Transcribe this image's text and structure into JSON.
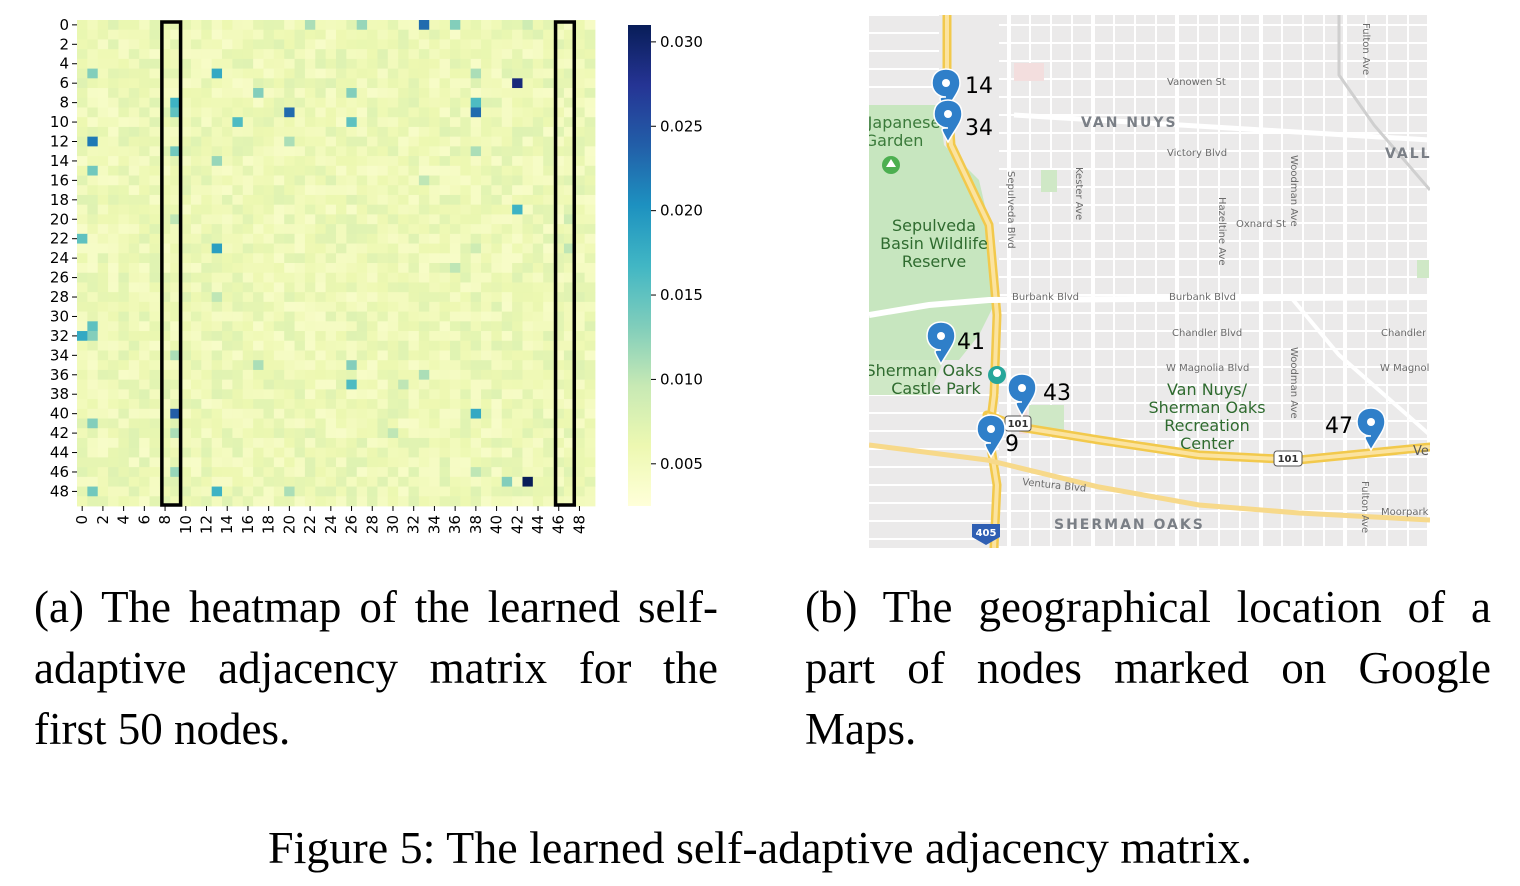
{
  "heatmap": {
    "chart_data": {
      "type": "heatmap",
      "title": "",
      "xlabel": "",
      "ylabel": "",
      "n_nodes": 50,
      "x_tick_labels": [
        "0",
        "2",
        "4",
        "6",
        "8",
        "10",
        "12",
        "14",
        "16",
        "18",
        "20",
        "22",
        "24",
        "26",
        "28",
        "30",
        "32",
        "34",
        "36",
        "38",
        "40",
        "42",
        "44",
        "46",
        "48"
      ],
      "y_tick_labels": [
        "0",
        "2",
        "4",
        "6",
        "8",
        "10",
        "12",
        "14",
        "16",
        "18",
        "20",
        "22",
        "24",
        "26",
        "28",
        "30",
        "32",
        "34",
        "36",
        "38",
        "40",
        "42",
        "44",
        "46",
        "48"
      ],
      "colorbar": {
        "min": 0.0025,
        "max": 0.031,
        "ticks": [
          0.005,
          0.01,
          0.015,
          0.02,
          0.025,
          0.03
        ],
        "tick_labels": [
          "0.005",
          "0.010",
          "0.015",
          "0.020",
          "0.025",
          "0.030"
        ],
        "colormap": "YlGnBu"
      },
      "background_value": 0.004,
      "cells": [
        {
          "row": 0,
          "col": 22,
          "value": 0.011
        },
        {
          "row": 0,
          "col": 27,
          "value": 0.012
        },
        {
          "row": 0,
          "col": 33,
          "value": 0.023
        },
        {
          "row": 0,
          "col": 36,
          "value": 0.013
        },
        {
          "row": 0,
          "col": 43,
          "value": 0.009
        },
        {
          "row": 5,
          "col": 1,
          "value": 0.013
        },
        {
          "row": 5,
          "col": 13,
          "value": 0.018
        },
        {
          "row": 5,
          "col": 38,
          "value": 0.011
        },
        {
          "row": 6,
          "col": 42,
          "value": 0.029
        },
        {
          "row": 7,
          "col": 17,
          "value": 0.013
        },
        {
          "row": 7,
          "col": 26,
          "value": 0.013
        },
        {
          "row": 8,
          "col": 9,
          "value": 0.017
        },
        {
          "row": 8,
          "col": 38,
          "value": 0.016
        },
        {
          "row": 9,
          "col": 9,
          "value": 0.015
        },
        {
          "row": 9,
          "col": 20,
          "value": 0.023
        },
        {
          "row": 9,
          "col": 38,
          "value": 0.023
        },
        {
          "row": 10,
          "col": 15,
          "value": 0.016
        },
        {
          "row": 10,
          "col": 26,
          "value": 0.015
        },
        {
          "row": 12,
          "col": 1,
          "value": 0.022
        },
        {
          "row": 12,
          "col": 20,
          "value": 0.011
        },
        {
          "row": 13,
          "col": 9,
          "value": 0.014
        },
        {
          "row": 13,
          "col": 38,
          "value": 0.011
        },
        {
          "row": 14,
          "col": 13,
          "value": 0.012
        },
        {
          "row": 15,
          "col": 1,
          "value": 0.014
        },
        {
          "row": 16,
          "col": 33,
          "value": 0.01
        },
        {
          "row": 19,
          "col": 45,
          "value": 0.007
        },
        {
          "row": 19,
          "col": 42,
          "value": 0.017
        },
        {
          "row": 20,
          "col": 9,
          "value": 0.01
        },
        {
          "row": 20,
          "col": 47,
          "value": 0.009
        },
        {
          "row": 22,
          "col": 0,
          "value": 0.015
        },
        {
          "row": 23,
          "col": 13,
          "value": 0.019
        },
        {
          "row": 23,
          "col": 38,
          "value": 0.009
        },
        {
          "row": 23,
          "col": 47,
          "value": 0.01
        },
        {
          "row": 25,
          "col": 36,
          "value": 0.01
        },
        {
          "row": 28,
          "col": 13,
          "value": 0.01
        },
        {
          "row": 31,
          "col": 1,
          "value": 0.015
        },
        {
          "row": 32,
          "col": 0,
          "value": 0.018
        },
        {
          "row": 32,
          "col": 1,
          "value": 0.013
        },
        {
          "row": 34,
          "col": 9,
          "value": 0.011
        },
        {
          "row": 35,
          "col": 26,
          "value": 0.013
        },
        {
          "row": 35,
          "col": 17,
          "value": 0.011
        },
        {
          "row": 36,
          "col": 33,
          "value": 0.011
        },
        {
          "row": 37,
          "col": 26,
          "value": 0.016
        },
        {
          "row": 37,
          "col": 31,
          "value": 0.01
        },
        {
          "row": 40,
          "col": 9,
          "value": 0.024
        },
        {
          "row": 40,
          "col": 38,
          "value": 0.018
        },
        {
          "row": 41,
          "col": 1,
          "value": 0.013
        },
        {
          "row": 42,
          "col": 9,
          "value": 0.011
        },
        {
          "row": 42,
          "col": 30,
          "value": 0.01
        },
        {
          "row": 46,
          "col": 9,
          "value": 0.012
        },
        {
          "row": 46,
          "col": 38,
          "value": 0.01
        },
        {
          "row": 47,
          "col": 41,
          "value": 0.013
        },
        {
          "row": 47,
          "col": 43,
          "value": 0.031
        },
        {
          "row": 48,
          "col": 1,
          "value": 0.014
        },
        {
          "row": 48,
          "col": 13,
          "value": 0.017
        },
        {
          "row": 48,
          "col": 20,
          "value": 0.011
        }
      ],
      "highlight_columns": [
        [
          8,
          9
        ],
        [
          46,
          47
        ]
      ]
    }
  },
  "map": {
    "street_labels": [
      "Vanowen St",
      "Victory Blvd",
      "Oxnard St",
      "Burbank Blvd",
      "Chandler Blvd",
      "W Magnolia Blvd",
      "Ventura Blvd",
      "Sepulveda Blvd",
      "Kester Ave",
      "Hazeltine Ave",
      "Woodman Ave",
      "Fulton Ave",
      "Moorpark",
      "Chandler Bl",
      "W Magnol",
      "Ve"
    ],
    "area_labels": [
      "VAN NUYS",
      "VALLE",
      "SHERMAN OAKS"
    ],
    "place_labels": [
      "Japanese",
      "Garden",
      "Sepulveda",
      "Basin Wildlife",
      "Reserve",
      "Sherman Oaks",
      "Castle Park",
      "Van Nuys/",
      "Sherman Oaks",
      "Recreation",
      "Center"
    ],
    "highway_shields": [
      "101",
      "101",
      "405"
    ],
    "markers": [
      {
        "label": "14"
      },
      {
        "label": "34"
      },
      {
        "label": "41"
      },
      {
        "label": "43"
      },
      {
        "label": "9"
      },
      {
        "label": "47"
      }
    ]
  },
  "captions": {
    "a": "(a) The heatmap of the learned self-adaptive adjacency matrix for the first 50 nodes.",
    "b": "(b) The geographical location of a part of nodes marked on Google Maps.",
    "figure": "Figure 5: The learned self-adaptive adjacency matrix."
  }
}
